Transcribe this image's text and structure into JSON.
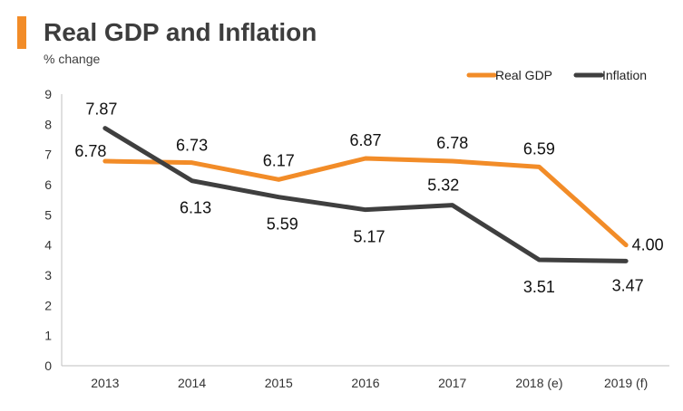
{
  "header": {
    "title": "Real GDP and Inflation",
    "subtitle": "% change"
  },
  "colors": {
    "accent": "#f28c28",
    "gdp": "#f28c28",
    "inflation": "#3f3f3f",
    "axis": "#bfbfbf"
  },
  "chart_data": {
    "type": "line",
    "title": "Real GDP and Inflation",
    "ylabel": "% change",
    "xlabel": "",
    "categories": [
      "2013",
      "2014",
      "2015",
      "2016",
      "2017",
      "2018 (e)",
      "2019 (f)"
    ],
    "yticks": [
      "0",
      "1",
      "2",
      "3",
      "4",
      "5",
      "6",
      "7",
      "8",
      "9"
    ],
    "ylim": [
      0,
      9
    ],
    "grid": false,
    "legend_position": "top-right",
    "series": [
      {
        "name": "Real GDP",
        "values": [
          6.78,
          6.73,
          6.17,
          6.87,
          6.78,
          6.59,
          4.0
        ],
        "labels": [
          "6.78",
          "6.73",
          "6.17",
          "6.87",
          "6.78",
          "6.59",
          "4.00"
        ]
      },
      {
        "name": "Inflation",
        "values": [
          7.87,
          6.13,
          5.59,
          5.17,
          5.32,
          3.51,
          3.47
        ],
        "labels": [
          "7.87",
          "6.13",
          "5.59",
          "5.17",
          "5.32",
          "3.51",
          "3.47"
        ]
      }
    ]
  }
}
